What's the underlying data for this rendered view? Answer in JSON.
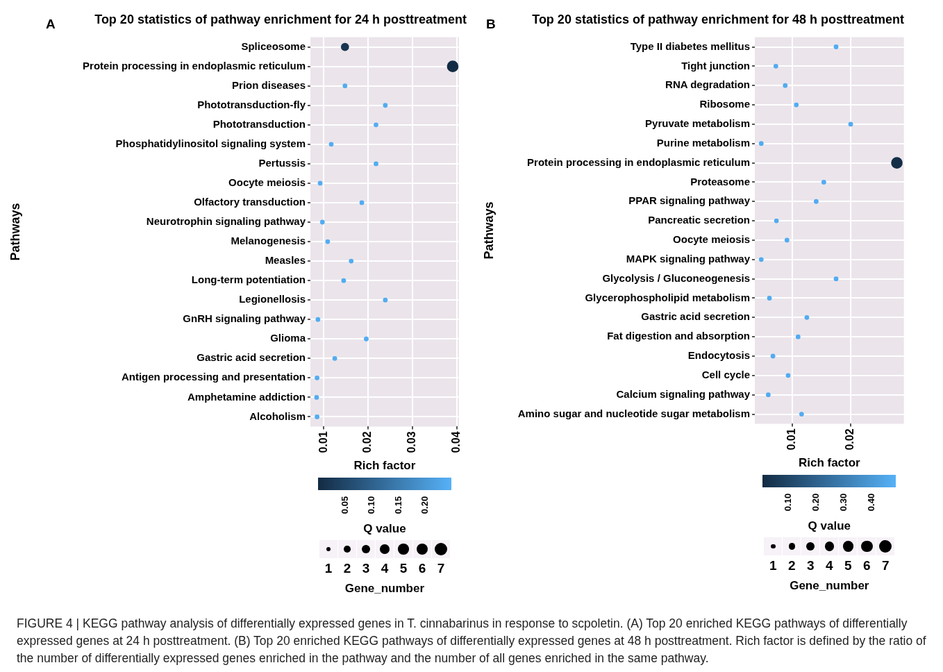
{
  "chart_data": [
    {
      "type": "bubble",
      "orientation": "horizontal",
      "title": "Top 20 statistics of pathway enrichment for 24 h posttreatment",
      "xlabel": "Rich factor",
      "ylabel": "Pathways",
      "clabel": "Q value",
      "legend_title": "Gene_number",
      "grid": true,
      "annotations": [
        "A"
      ],
      "categories": [
        "Spliceosome",
        "Protein processing in endoplasmic reticulum",
        "Prion diseases",
        "Phototransduction-fly",
        "Phototransduction",
        "Phosphatidylinositol signaling system",
        "Pertussis",
        "Oocyte meiosis",
        "Olfactory transduction",
        "Neurotrophin signaling pathway",
        "Melanogenesis",
        "Measles",
        "Long-term potentiation",
        "Legionellosis",
        "GnRH signaling pathway",
        "Glioma",
        "Gastric acid secretion",
        "Antigen processing and presentation",
        "Amphetamine addiction",
        "Alcoholism"
      ],
      "values": [
        0.0148,
        0.0391,
        0.0148,
        0.0239,
        0.0218,
        0.0117,
        0.0218,
        0.0092,
        0.0186,
        0.0097,
        0.0109,
        0.0162,
        0.0145,
        0.0239,
        0.0087,
        0.0196,
        0.0125,
        0.0085,
        0.0084,
        0.0085
      ],
      "sizes": [
        3,
        6,
        1,
        1,
        1,
        1,
        1,
        1,
        1,
        1,
        1,
        1,
        1,
        1,
        1,
        1,
        1,
        1,
        1,
        1
      ],
      "cvalues": [
        0.02,
        0.002,
        0.24,
        0.24,
        0.24,
        0.24,
        0.24,
        0.24,
        0.24,
        0.24,
        0.24,
        0.24,
        0.24,
        0.24,
        0.24,
        0.24,
        0.24,
        0.24,
        0.24,
        0.24
      ],
      "xlim": [
        0.007,
        0.0405
      ],
      "xticks": [
        0.01,
        0.02,
        0.03,
        0.04
      ],
      "clim": [
        0.001,
        0.25
      ],
      "cticks": [
        0.05,
        {
          "value": 0.1,
          "label": "0.10"
        },
        0.15,
        {
          "value": 0.2,
          "label": "0.20"
        }
      ],
      "size_legend": [
        1,
        2,
        3,
        4,
        5,
        6,
        7
      ]
    },
    {
      "type": "bubble",
      "orientation": "horizontal",
      "title": "Top 20 statistics of pathway enrichment for 48 h posttreatment",
      "xlabel": "Rich factor",
      "ylabel": "Pathways",
      "clabel": "Q value",
      "legend_title": "Gene_number",
      "grid": true,
      "annotations": [
        "B",
        "FIGURE 4 | KEGG pathway analysis of differentially expressed genes in T. cinnabarinus in response to scpoletin. (A) Top 20 enriched KEGG pathways of differentially expressed genes at 24 h posttreatment. (B) Top 20 enriched KEGG pathways of differentially expressed genes at 48 h posttreatment. Rich factor is defined by the ratio of the number of differentially expressed genes enriched in the pathway and the number of all genes enriched in the same pathway."
      ],
      "categories": [
        "Type II diabetes mellitus",
        "Tight junction",
        "RNA degradation",
        "Ribosome",
        "Pyruvate metabolism",
        "Purine metabolism",
        "Protein processing in endoplasmic reticulum",
        "Proteasome",
        "PPAR signaling pathway",
        "Pancreatic secretion",
        "Oocyte meiosis",
        "MAPK signaling pathway",
        "Glycolysis / Gluconeogenesis",
        "Glycerophospholipid metabolism",
        "Gastric acid secretion",
        "Fat digestion and absorption",
        "Endocytosis",
        "Cell cycle",
        "Calcium signaling pathway",
        "Amino sugar and nucleotide sugar metabolism"
      ],
      "values": [
        0.0175,
        0.0072,
        0.0088,
        0.0107,
        0.02,
        0.0047,
        0.0279,
        0.0154,
        0.0141,
        0.0073,
        0.0091,
        0.0047,
        0.0175,
        0.0061,
        0.0125,
        0.011,
        0.0067,
        0.0093,
        0.0059,
        0.0116
      ],
      "sizes": [
        1,
        1,
        1,
        1,
        1,
        1,
        6,
        1,
        1,
        1,
        1,
        1,
        1,
        1,
        1,
        1,
        1,
        1,
        1,
        1
      ],
      "cvalues": [
        0.47,
        0.47,
        0.47,
        0.47,
        0.47,
        0.47,
        0.02,
        0.47,
        0.47,
        0.47,
        0.47,
        0.47,
        0.47,
        0.47,
        0.47,
        0.47,
        0.47,
        0.47,
        0.47,
        0.47
      ],
      "xlim": [
        0.0036,
        0.0291
      ],
      "xticks": [
        0.01,
        0.02
      ],
      "clim": [
        0.01,
        0.49
      ],
      "cticks": [
        {
          "value": 0.1,
          "label": "0.10"
        },
        {
          "value": 0.2,
          "label": "0.20"
        },
        {
          "value": 0.3,
          "label": "0.30"
        },
        {
          "value": 0.4,
          "label": "0.40"
        }
      ],
      "size_legend": [
        1,
        2,
        3,
        4,
        5,
        6,
        7
      ]
    }
  ]
}
